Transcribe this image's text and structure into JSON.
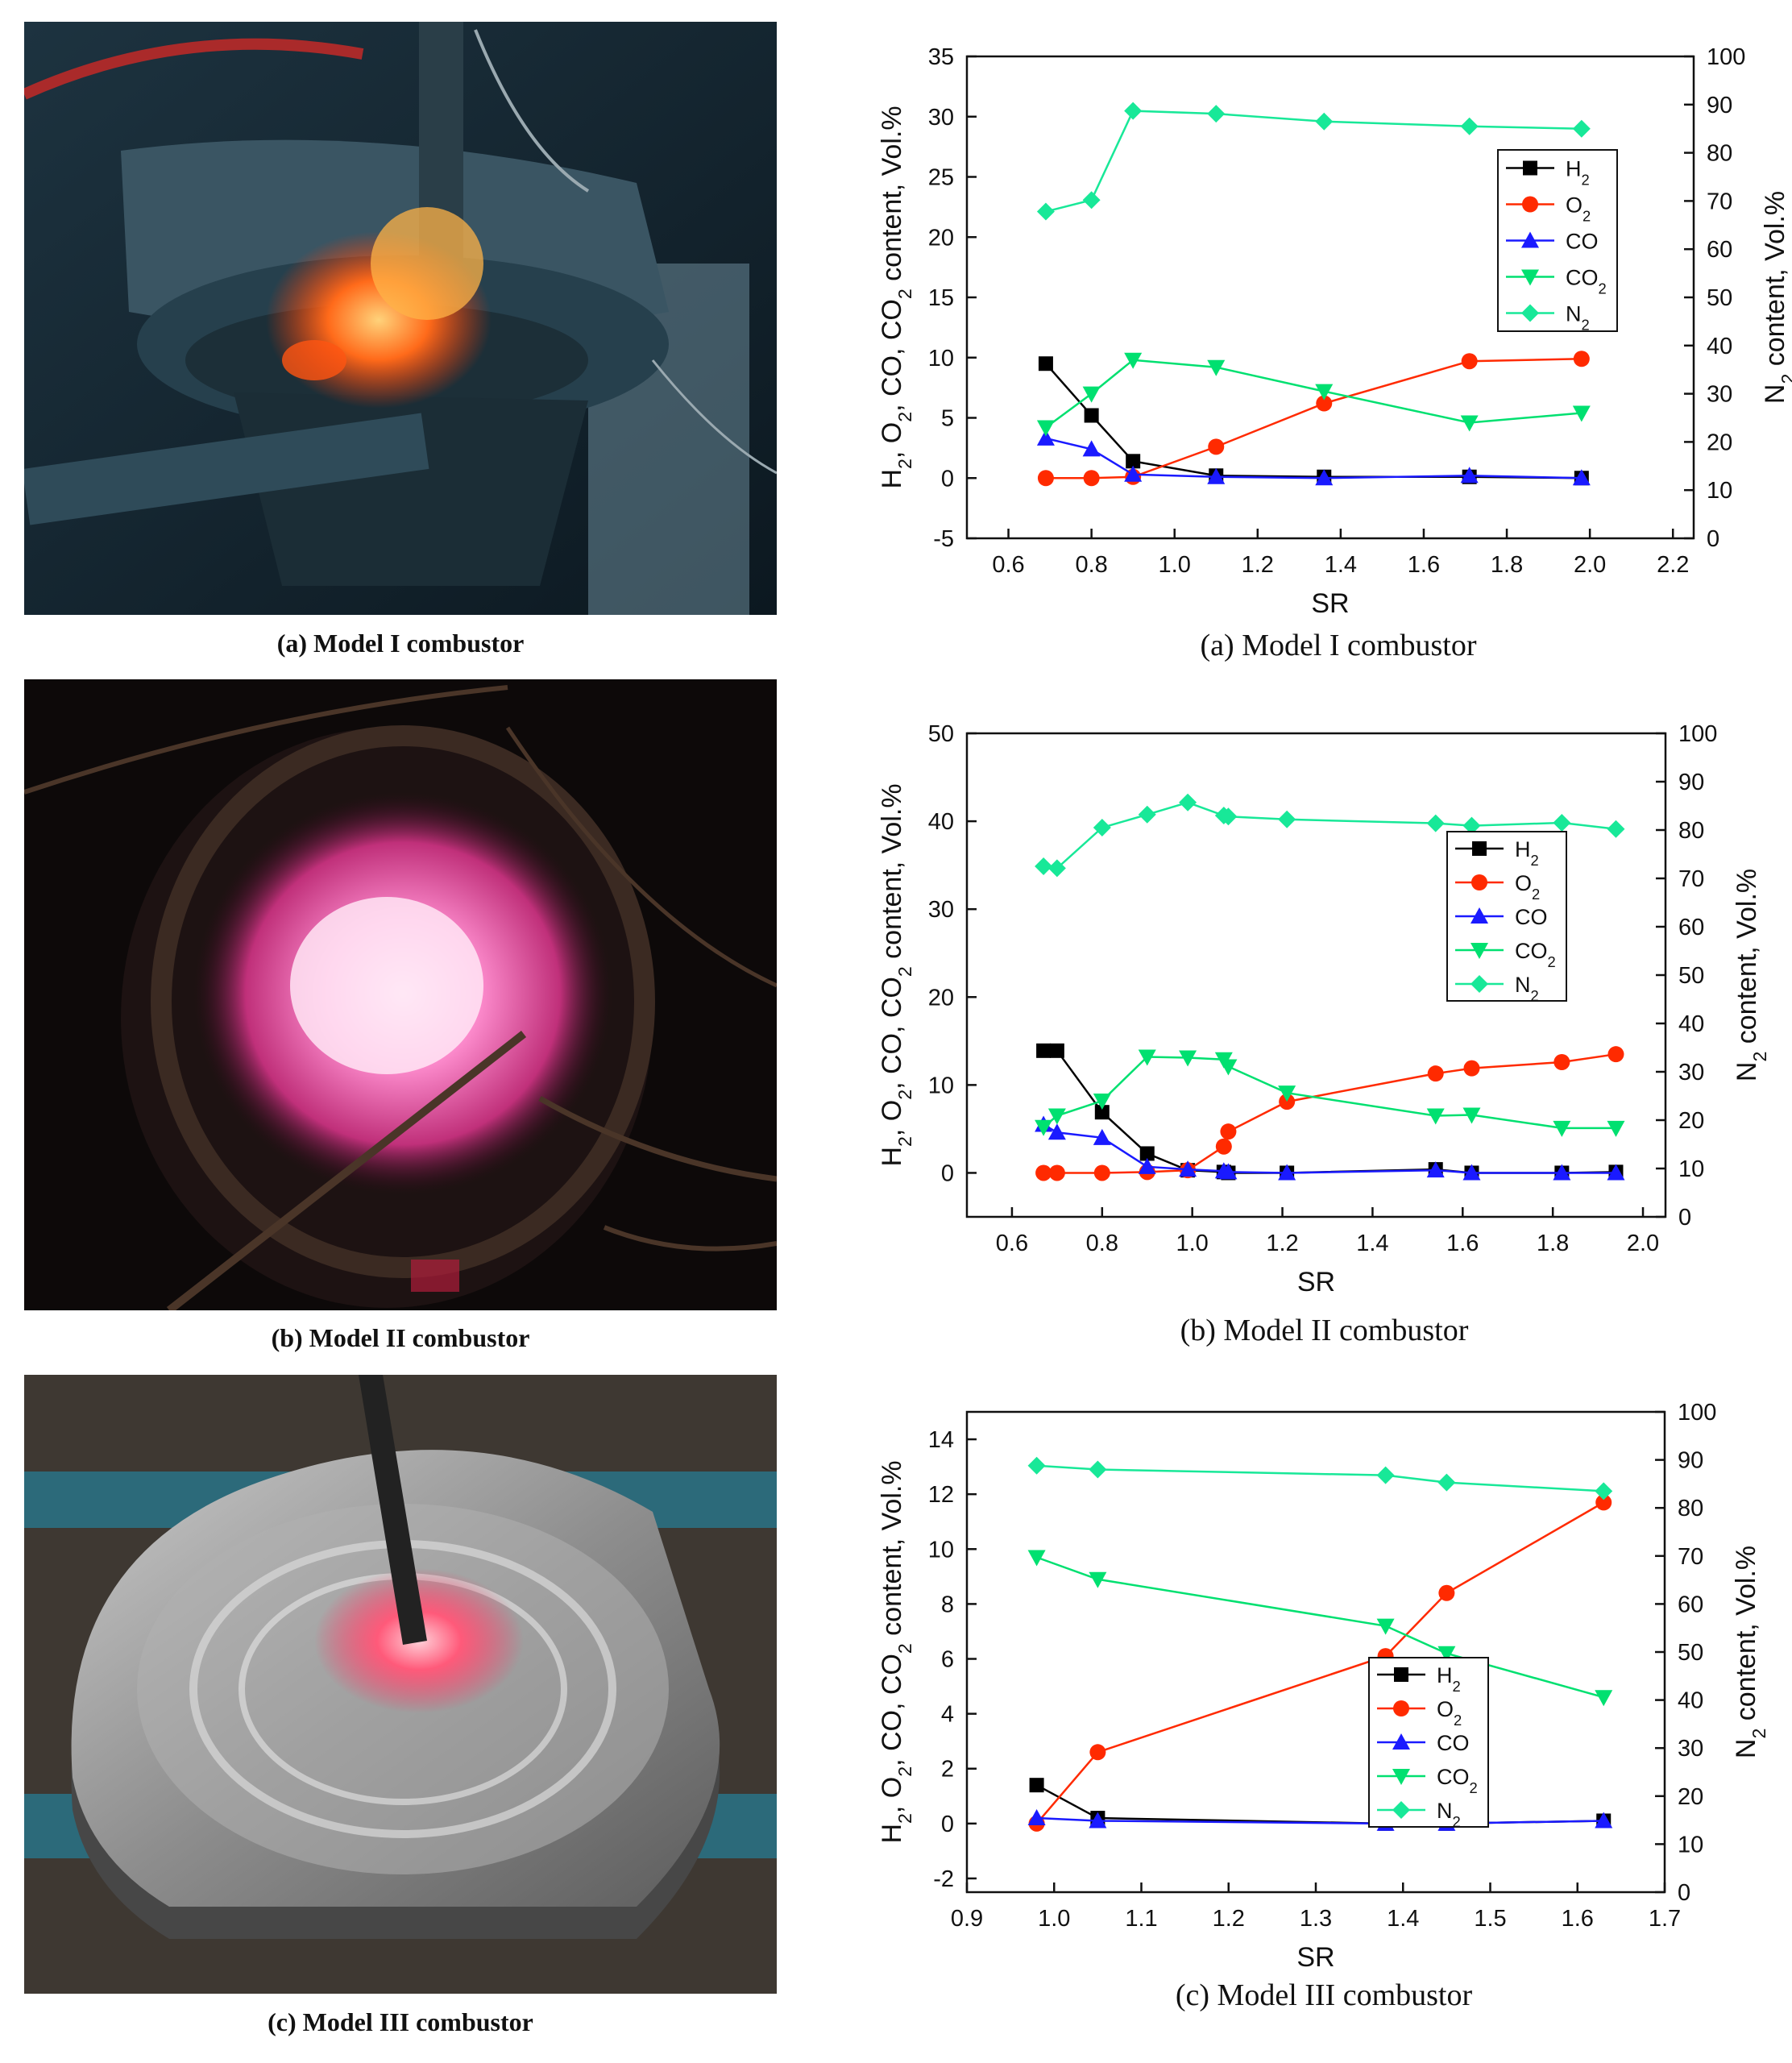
{
  "photos": [
    {
      "caption": "(a) Model I combustor"
    },
    {
      "caption": "(b) Model II combustor"
    },
    {
      "caption": "(c) Model III combustor"
    }
  ],
  "series_colors": {
    "H2": "#000000",
    "O2": "#ff2a00",
    "CO": "#1a1aff",
    "CO2": "#00e070",
    "N2": "#18e898"
  },
  "legend_labels": {
    "H2": [
      "H",
      "2"
    ],
    "O2": [
      "O",
      "2"
    ],
    "CO": [
      "CO",
      ""
    ],
    "CO2": [
      "CO",
      "2"
    ],
    "N2": [
      "N",
      "2"
    ]
  },
  "chart_data": [
    {
      "type": "line",
      "caption": "(a) Model I combustor",
      "xlabel": "SR",
      "ylabel": "H2, O2, CO, CO2 content, Vol.%",
      "y2label": "N2 content, Vol.%",
      "xlim": [
        0.5,
        2.25
      ],
      "xticks": [
        0.6,
        0.8,
        1.0,
        1.2,
        1.4,
        1.6,
        1.8,
        2.0,
        2.2
      ],
      "ylim": [
        -5,
        35
      ],
      "yticks": [
        -5,
        0,
        5,
        10,
        15,
        20,
        25,
        30,
        35
      ],
      "y2lim": [
        0,
        100
      ],
      "y2ticks": [
        0,
        10,
        20,
        30,
        40,
        50,
        60,
        70,
        80,
        90,
        100
      ],
      "legend_position": "top-right",
      "series": [
        {
          "name": "H2",
          "axis": "left",
          "marker": "square",
          "x": [
            0.69,
            0.8,
            0.9,
            1.1,
            1.36,
            1.71,
            1.98
          ],
          "values": [
            9.5,
            5.2,
            1.4,
            0.2,
            0.1,
            0.1,
            0.0
          ]
        },
        {
          "name": "O2",
          "axis": "left",
          "marker": "circle",
          "x": [
            0.69,
            0.8,
            0.9,
            1.1,
            1.36,
            1.71,
            1.98
          ],
          "values": [
            0.0,
            0.0,
            0.1,
            2.6,
            6.2,
            9.7,
            9.9
          ]
        },
        {
          "name": "CO",
          "axis": "left",
          "marker": "triangle-up",
          "x": [
            0.69,
            0.8,
            0.9,
            1.1,
            1.36,
            1.71,
            1.98
          ],
          "values": [
            3.3,
            2.4,
            0.3,
            0.1,
            0.0,
            0.2,
            0.0
          ]
        },
        {
          "name": "CO2",
          "axis": "left",
          "marker": "triangle-down",
          "x": [
            0.69,
            0.8,
            0.9,
            1.1,
            1.36,
            1.71,
            1.98
          ],
          "values": [
            4.2,
            7.0,
            9.8,
            9.2,
            7.2,
            4.6,
            5.4
          ]
        },
        {
          "name": "N2",
          "axis": "right",
          "marker": "diamond",
          "x": [
            0.69,
            0.8,
            0.9,
            1.1,
            1.36,
            1.71,
            1.98
          ],
          "values": [
            67.8,
            70.2,
            88.7,
            88.1,
            86.5,
            85.5,
            85.0
          ]
        }
      ]
    },
    {
      "type": "line",
      "caption": "(b) Model II combustor",
      "xlabel": "SR",
      "ylabel": "H2, O2, CO, CO2 content, Vol.%",
      "y2label": "N2 content, Vol.%",
      "xlim": [
        0.5,
        2.05
      ],
      "xticks": [
        0.6,
        0.8,
        1.0,
        1.2,
        1.4,
        1.6,
        1.8,
        2.0
      ],
      "ylim": [
        -5,
        50
      ],
      "yticks": [
        0,
        10,
        20,
        30,
        40,
        50
      ],
      "y2lim": [
        0,
        100
      ],
      "y2ticks": [
        0,
        10,
        20,
        30,
        40,
        50,
        60,
        70,
        80,
        90,
        100
      ],
      "legend_position": "top-right",
      "series": [
        {
          "name": "H2",
          "axis": "left",
          "marker": "square",
          "x": [
            0.67,
            0.7,
            0.8,
            0.9,
            0.99,
            1.07,
            1.08,
            1.21,
            1.54,
            1.62,
            1.82,
            1.94
          ],
          "values": [
            13.9,
            13.9,
            6.9,
            2.2,
            0.3,
            0.1,
            0.0,
            0.0,
            0.4,
            0.0,
            0.0,
            0.1
          ]
        },
        {
          "name": "O2",
          "axis": "left",
          "marker": "circle",
          "x": [
            0.67,
            0.7,
            0.8,
            0.9,
            0.99,
            1.07,
            1.08,
            1.21,
            1.54,
            1.62,
            1.82,
            1.94
          ],
          "values": [
            0.0,
            0.0,
            0.0,
            0.1,
            0.3,
            3.0,
            4.7,
            8.1,
            11.3,
            11.9,
            12.6,
            13.5
          ]
        },
        {
          "name": "CO",
          "axis": "left",
          "marker": "triangle-up",
          "x": [
            0.67,
            0.7,
            0.8,
            0.9,
            0.99,
            1.07,
            1.08,
            1.21,
            1.54,
            1.62,
            1.82,
            1.94
          ],
          "values": [
            5.5,
            4.6,
            4.0,
            0.7,
            0.4,
            0.2,
            0.1,
            0.0,
            0.3,
            0.0,
            0.0,
            0.0
          ]
        },
        {
          "name": "CO2",
          "axis": "left",
          "marker": "triangle-down",
          "x": [
            0.67,
            0.7,
            0.8,
            0.9,
            0.99,
            1.07,
            1.08,
            1.21,
            1.54,
            1.62,
            1.82,
            1.94
          ],
          "values": [
            5.2,
            6.5,
            8.2,
            13.2,
            13.1,
            12.9,
            12.1,
            9.1,
            6.5,
            6.6,
            5.1,
            5.1
          ]
        },
        {
          "name": "N2",
          "axis": "right",
          "marker": "diamond",
          "x": [
            0.67,
            0.7,
            0.8,
            0.9,
            0.99,
            1.07,
            1.08,
            1.21,
            1.54,
            1.62,
            1.82,
            1.94
          ],
          "values": [
            72.5,
            72.1,
            80.5,
            83.2,
            85.7,
            83.0,
            82.8,
            82.2,
            81.4,
            80.9,
            81.5,
            80.2
          ]
        }
      ]
    },
    {
      "type": "line",
      "caption": "(c) Model III combustor",
      "xlabel": "SR",
      "ylabel": "H2, O2, CO, CO2 content, Vol.%",
      "y2label": "N2 content, Vol.%",
      "xlim": [
        0.9,
        1.7
      ],
      "xticks": [
        0.9,
        1.0,
        1.1,
        1.2,
        1.3,
        1.4,
        1.5,
        1.6,
        1.7
      ],
      "ylim": [
        -2.5,
        15
      ],
      "yticks": [
        -2,
        0,
        2,
        4,
        6,
        8,
        10,
        12,
        14
      ],
      "y2lim": [
        0,
        100
      ],
      "y2ticks": [
        0,
        10,
        20,
        30,
        40,
        50,
        60,
        70,
        80,
        90,
        100
      ],
      "legend_position": "bottom-center",
      "series": [
        {
          "name": "H2",
          "axis": "left",
          "marker": "square",
          "x": [
            0.98,
            1.05,
            1.38,
            1.45,
            1.63
          ],
          "values": [
            1.4,
            0.2,
            0.0,
            0.0,
            0.1
          ]
        },
        {
          "name": "O2",
          "axis": "left",
          "marker": "circle",
          "x": [
            0.98,
            1.05,
            1.38,
            1.45,
            1.63
          ],
          "values": [
            0.0,
            2.6,
            6.1,
            8.4,
            11.7
          ]
        },
        {
          "name": "CO",
          "axis": "left",
          "marker": "triangle-up",
          "x": [
            0.98,
            1.05,
            1.38,
            1.45,
            1.63
          ],
          "values": [
            0.2,
            0.1,
            0.0,
            0.0,
            0.1
          ]
        },
        {
          "name": "CO2",
          "axis": "left",
          "marker": "triangle-down",
          "x": [
            0.98,
            1.05,
            1.38,
            1.45,
            1.63
          ],
          "values": [
            9.7,
            8.9,
            7.2,
            6.2,
            4.6
          ]
        },
        {
          "name": "N2",
          "axis": "right",
          "marker": "diamond",
          "x": [
            0.98,
            1.05,
            1.38,
            1.45,
            1.63
          ],
          "values": [
            88.8,
            88.0,
            86.8,
            85.3,
            83.5
          ]
        }
      ]
    }
  ]
}
